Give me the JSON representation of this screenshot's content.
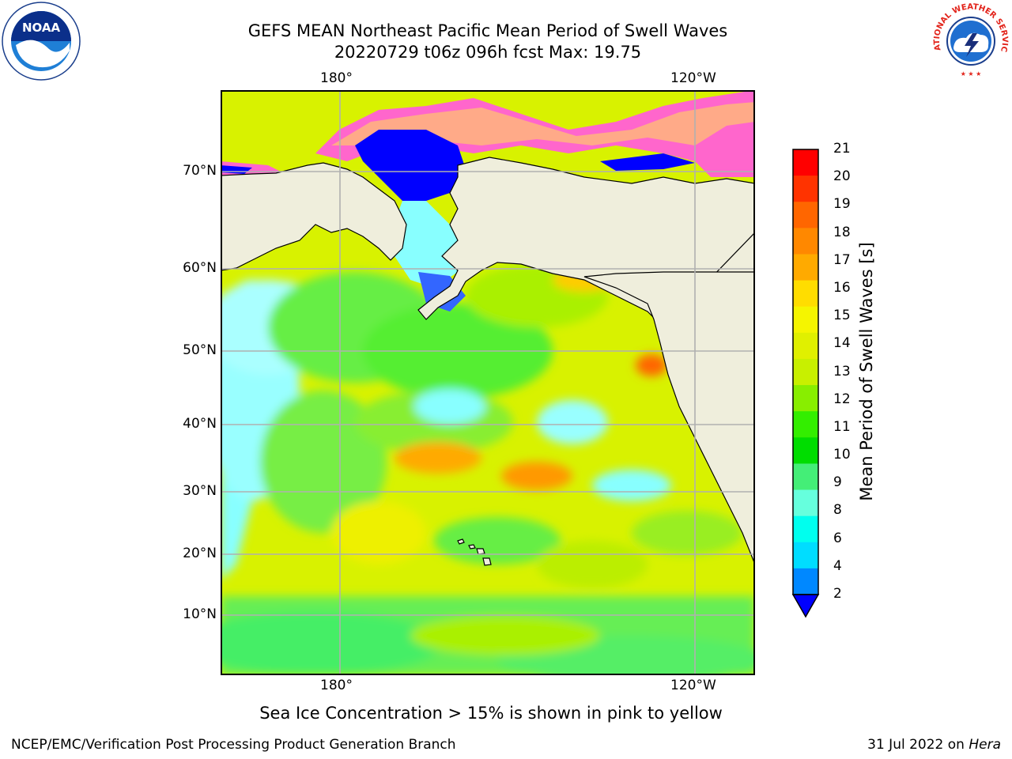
{
  "title_line1": "GEFS MEAN Northeast Pacific Mean Period of Swell Waves",
  "title_line2": "20220729 t06z 096h fcst   Max: 19.75",
  "lon_labels_top": [
    "180°",
    "120°W"
  ],
  "lon_labels_bottom": [
    "180°",
    "120°W"
  ],
  "lat_labels": [
    "70°N",
    "60°N",
    "50°N",
    "40°N",
    "30°N",
    "20°N",
    "10°N"
  ],
  "colorbar": {
    "title": "Mean Period of Swell Waves [s]",
    "ticks": [
      "21",
      "20",
      "19",
      "18",
      "17",
      "16",
      "15",
      "14",
      "13",
      "12",
      "11",
      "10",
      "9",
      "8",
      "6",
      "4",
      "2"
    ],
    "colors": [
      "#ff0000",
      "#ff3300",
      "#ff6600",
      "#ff8800",
      "#ffaa00",
      "#ffdd00",
      "#f5f500",
      "#e0f000",
      "#c8f000",
      "#88ee00",
      "#33ee00",
      "#00dd00",
      "#44ee77",
      "#66ffdd",
      "#00ffee",
      "#00ddff",
      "#0088ff"
    ],
    "extend_color": "#0000ff"
  },
  "note": "Sea Ice Concentration > 15% is shown in pink to yellow",
  "footer_left": "NCEP/EMC/Verification Post Processing Product Generation Branch",
  "footer_right_date": "31 Jul 2022 on ",
  "footer_right_host": "Hera",
  "logos": {
    "noaa": "NOAA",
    "nws": "NATIONAL WEATHER SERVICE"
  },
  "colors": {
    "land": "#efeedc",
    "grid": "#b0b0b0",
    "ice_pink": "#ff66cc",
    "ice_orange": "#ffaa66",
    "ocean_green": "#66ee44",
    "ocean_yellow": "#e8f000",
    "ocean_cyan": "#88ffff"
  }
}
